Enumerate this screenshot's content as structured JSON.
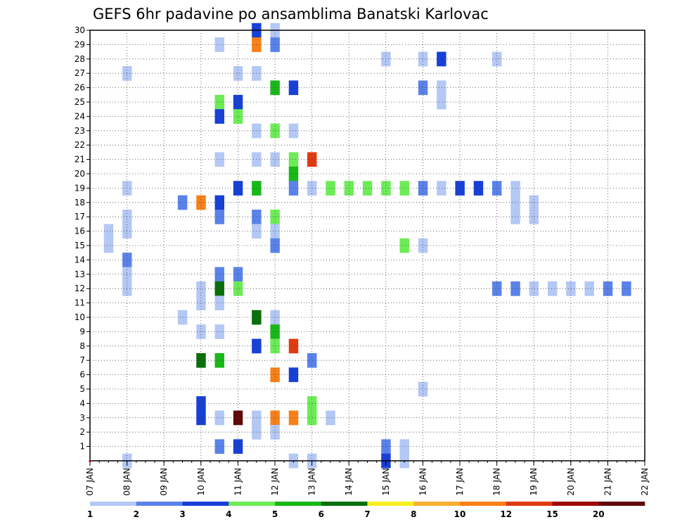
{
  "chart_data": {
    "type": "heatmap",
    "title": "GEFS 6hr padavine po ansamblima Banatski Karlovac",
    "x_tick_labels": [
      "07 JAN",
      "08 JAN",
      "09 JAN",
      "10 JAN",
      "11 JAN",
      "12 JAN",
      "13 JAN",
      "14 JAN",
      "15 JAN",
      "16 JAN",
      "17 JAN",
      "18 JAN",
      "19 JAN",
      "20 JAN",
      "21 JAN",
      "22 JAN"
    ],
    "y_tick_labels": [
      "1",
      "2",
      "3",
      "4",
      "5",
      "6",
      "7",
      "8",
      "9",
      "10",
      "11",
      "12",
      "13",
      "14",
      "15",
      "16",
      "17",
      "18",
      "19",
      "20",
      "21",
      "22",
      "23",
      "24",
      "25",
      "26",
      "27",
      "28",
      "29",
      "30"
    ],
    "y_range": [
      0,
      30
    ],
    "x_step_hours": 6,
    "grid": true,
    "colorbar": {
      "labels": [
        "1",
        "2",
        "3",
        "4",
        "5",
        "6",
        "7",
        "8",
        "10",
        "12",
        "15",
        "20"
      ],
      "colors": [
        "#b4c8f5",
        "#5a82ea",
        "#1740d6",
        "#6cec56",
        "#18b818",
        "#08700a",
        "#f6f020",
        "#f8b030",
        "#f88018",
        "#e03a10",
        "#a00808",
        "#600808"
      ]
    },
    "cells": [
      [
        4.5,
        30,
        3
      ],
      [
        5.0,
        30,
        1
      ],
      [
        26.5,
        30,
        1
      ],
      [
        27.0,
        30,
        1
      ],
      [
        3.5,
        29,
        1
      ],
      [
        4.5,
        29,
        9
      ],
      [
        5.0,
        29,
        2
      ],
      [
        17.5,
        29,
        1
      ],
      [
        18.0,
        29,
        1
      ],
      [
        26.5,
        29,
        2
      ],
      [
        8.0,
        28,
        1
      ],
      [
        9.0,
        28,
        1
      ],
      [
        9.5,
        28,
        3
      ],
      [
        11.0,
        28,
        1
      ],
      [
        1.0,
        27,
        1
      ],
      [
        4.0,
        27,
        1
      ],
      [
        4.5,
        27,
        1
      ],
      [
        5.0,
        26,
        5
      ],
      [
        5.5,
        26,
        3
      ],
      [
        9.0,
        26,
        2
      ],
      [
        9.5,
        26,
        1
      ],
      [
        3.5,
        25,
        4
      ],
      [
        4.0,
        25,
        3
      ],
      [
        9.5,
        25,
        1
      ],
      [
        19.0,
        25,
        1
      ],
      [
        27.5,
        25,
        1
      ],
      [
        3.5,
        24,
        3
      ],
      [
        4.0,
        24,
        4
      ],
      [
        18.5,
        24,
        1
      ],
      [
        4.5,
        23,
        1
      ],
      [
        5.0,
        23,
        4
      ],
      [
        5.5,
        23,
        1
      ],
      [
        18.5,
        23,
        3
      ],
      [
        19.0,
        23,
        1
      ],
      [
        19.5,
        23,
        3
      ],
      [
        20.0,
        23,
        5
      ],
      [
        23.5,
        23,
        2
      ],
      [
        25.0,
        23,
        1
      ],
      [
        25.5,
        23,
        3
      ],
      [
        3.5,
        21,
        1
      ],
      [
        4.5,
        21,
        1
      ],
      [
        5.0,
        21,
        1
      ],
      [
        5.5,
        21,
        4
      ],
      [
        6.0,
        21,
        10
      ],
      [
        5.5,
        20,
        5
      ],
      [
        1.0,
        19,
        1
      ],
      [
        4.0,
        19,
        3
      ],
      [
        4.5,
        19,
        5
      ],
      [
        5.5,
        19,
        2
      ],
      [
        6.0,
        19,
        1
      ],
      [
        6.5,
        19,
        4
      ],
      [
        7.0,
        19,
        4
      ],
      [
        7.5,
        19,
        4
      ],
      [
        8.0,
        19,
        4
      ],
      [
        8.5,
        19,
        4
      ],
      [
        9.0,
        19,
        2
      ],
      [
        9.5,
        19,
        1
      ],
      [
        10.0,
        19,
        3
      ],
      [
        10.5,
        19,
        3
      ],
      [
        11.0,
        19,
        2
      ],
      [
        11.5,
        19,
        1
      ],
      [
        22.5,
        19,
        2
      ],
      [
        23.0,
        19,
        1
      ],
      [
        23.5,
        19,
        1
      ],
      [
        2.5,
        18,
        2
      ],
      [
        3.0,
        18,
        9
      ],
      [
        3.5,
        18,
        3
      ],
      [
        11.5,
        18,
        1
      ],
      [
        12.0,
        18,
        1
      ],
      [
        18.5,
        18,
        2
      ],
      [
        19.0,
        18,
        1
      ],
      [
        1.0,
        17,
        1
      ],
      [
        3.5,
        17,
        2
      ],
      [
        4.5,
        17,
        2
      ],
      [
        5.0,
        17,
        4
      ],
      [
        11.5,
        17,
        1
      ],
      [
        12.0,
        17,
        1
      ],
      [
        0.5,
        16,
        1
      ],
      [
        1.0,
        16,
        1
      ],
      [
        4.5,
        16,
        1
      ],
      [
        5.0,
        16,
        1
      ],
      [
        0.5,
        15,
        1
      ],
      [
        5.0,
        15,
        2
      ],
      [
        8.5,
        15,
        4
      ],
      [
        9.0,
        15,
        1
      ],
      [
        1.0,
        14,
        2
      ],
      [
        17.0,
        14,
        1
      ],
      [
        1.0,
        13,
        1
      ],
      [
        3.5,
        13,
        2
      ],
      [
        4.0,
        13,
        2
      ],
      [
        16.5,
        13,
        2
      ],
      [
        17.0,
        13,
        2
      ],
      [
        17.5,
        13,
        2
      ],
      [
        18.0,
        13,
        1
      ],
      [
        18.5,
        13,
        1
      ],
      [
        1.0,
        12,
        1
      ],
      [
        3.0,
        12,
        1
      ],
      [
        3.5,
        12,
        6
      ],
      [
        4.0,
        12,
        4
      ],
      [
        11.0,
        12,
        2
      ],
      [
        11.5,
        12,
        2
      ],
      [
        12.0,
        12,
        1
      ],
      [
        12.5,
        12,
        1
      ],
      [
        13.0,
        12,
        1
      ],
      [
        13.5,
        12,
        1
      ],
      [
        14.0,
        12,
        2
      ],
      [
        14.5,
        12,
        2
      ],
      [
        16.0,
        12,
        2
      ],
      [
        16.5,
        12,
        2
      ],
      [
        29.5,
        12,
        1
      ],
      [
        30.0,
        12,
        2
      ],
      [
        3.0,
        11,
        1
      ],
      [
        3.5,
        11,
        1
      ],
      [
        29.5,
        11,
        1
      ],
      [
        30.0,
        11,
        2
      ],
      [
        2.5,
        10,
        1
      ],
      [
        4.5,
        10,
        6
      ],
      [
        5.0,
        10,
        1
      ],
      [
        3.0,
        9,
        1
      ],
      [
        3.5,
        9,
        1
      ],
      [
        5.0,
        9,
        5
      ],
      [
        4.5,
        8,
        3
      ],
      [
        5.0,
        8,
        4
      ],
      [
        5.5,
        8,
        10
      ],
      [
        3.0,
        7,
        6
      ],
      [
        3.5,
        7,
        5
      ],
      [
        6.0,
        7,
        2
      ],
      [
        5.0,
        6,
        9
      ],
      [
        5.5,
        6,
        3
      ],
      [
        17.5,
        6,
        2
      ],
      [
        18.0,
        6,
        1
      ],
      [
        19.0,
        6,
        2
      ],
      [
        19.5,
        6,
        1
      ],
      [
        20.0,
        6,
        1
      ],
      [
        25.0,
        6,
        1
      ],
      [
        25.5,
        6,
        1
      ],
      [
        9.0,
        5,
        1
      ],
      [
        3.0,
        4,
        3
      ],
      [
        6.0,
        4,
        4
      ],
      [
        22.5,
        4,
        2
      ],
      [
        23.0,
        4,
        2
      ],
      [
        23.5,
        4,
        3
      ],
      [
        24.0,
        4,
        1
      ],
      [
        3.0,
        3,
        3
      ],
      [
        3.5,
        3,
        1
      ],
      [
        4.0,
        3,
        12
      ],
      [
        4.5,
        3,
        1
      ],
      [
        5.0,
        3,
        9
      ],
      [
        5.5,
        3,
        9
      ],
      [
        6.0,
        3,
        4
      ],
      [
        6.5,
        3,
        1
      ],
      [
        4.5,
        2,
        1
      ],
      [
        5.0,
        2,
        1
      ],
      [
        3.5,
        1,
        2
      ],
      [
        4.0,
        1,
        3
      ],
      [
        8.0,
        1,
        2
      ],
      [
        8.5,
        1,
        1
      ],
      [
        26.5,
        1,
        1
      ],
      [
        1.0,
        0,
        1
      ],
      [
        5.5,
        0,
        1
      ],
      [
        6.0,
        0,
        1
      ],
      [
        8.0,
        0,
        3
      ],
      [
        8.5,
        0,
        1
      ]
    ]
  }
}
